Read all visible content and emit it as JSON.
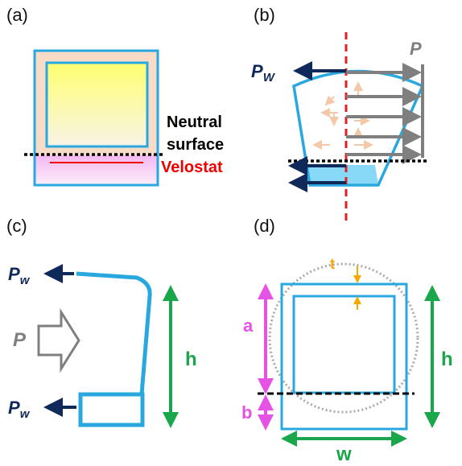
{
  "panels": [
    {
      "label": "(a)",
      "neutral_line1": "Neutral",
      "neutral_line2": "surface",
      "velostat": "Velostat"
    },
    {
      "label": "(b)",
      "pressure": "P",
      "wall_force": "P",
      "wall_force_sub": "W"
    },
    {
      "label": "(c)",
      "pressure": "P",
      "wall_force_top": "P",
      "wall_force_top_sub": "w",
      "wall_force_bottom": "P",
      "wall_force_bottom_sub": "w",
      "height": "h"
    },
    {
      "label": "(d)",
      "thickness": "t",
      "a": "a",
      "b": "b",
      "height": "h",
      "width": "w"
    }
  ]
}
